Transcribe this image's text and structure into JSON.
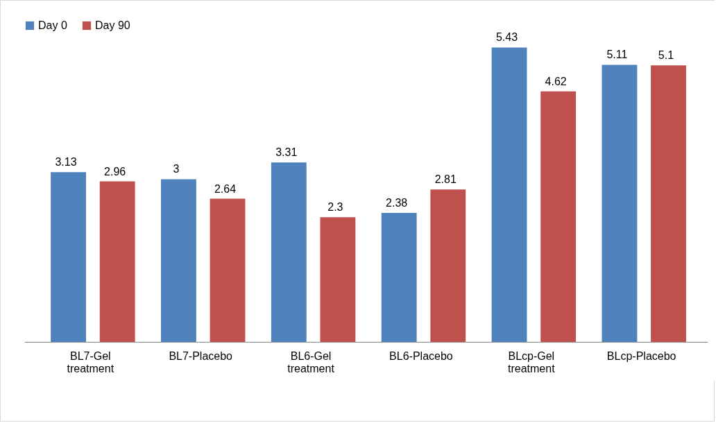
{
  "chart_data": {
    "type": "bar",
    "categories": [
      "BL7-Gel treatment",
      "BL7-Placebo",
      "BL6-Gel treatment",
      "BL6-Placebo",
      "BLcp-Gel treatment",
      "BLcp-Placebo"
    ],
    "series": [
      {
        "name": "Day 0",
        "color": "#4f81bd",
        "values": [
          3.13,
          3,
          3.31,
          2.38,
          5.43,
          5.11
        ]
      },
      {
        "name": "Day 90",
        "color": "#c0504d",
        "values": [
          2.96,
          2.64,
          2.3,
          2.81,
          4.62,
          5.1
        ]
      }
    ],
    "data_labels": true,
    "legend": "top",
    "grid": false
  }
}
